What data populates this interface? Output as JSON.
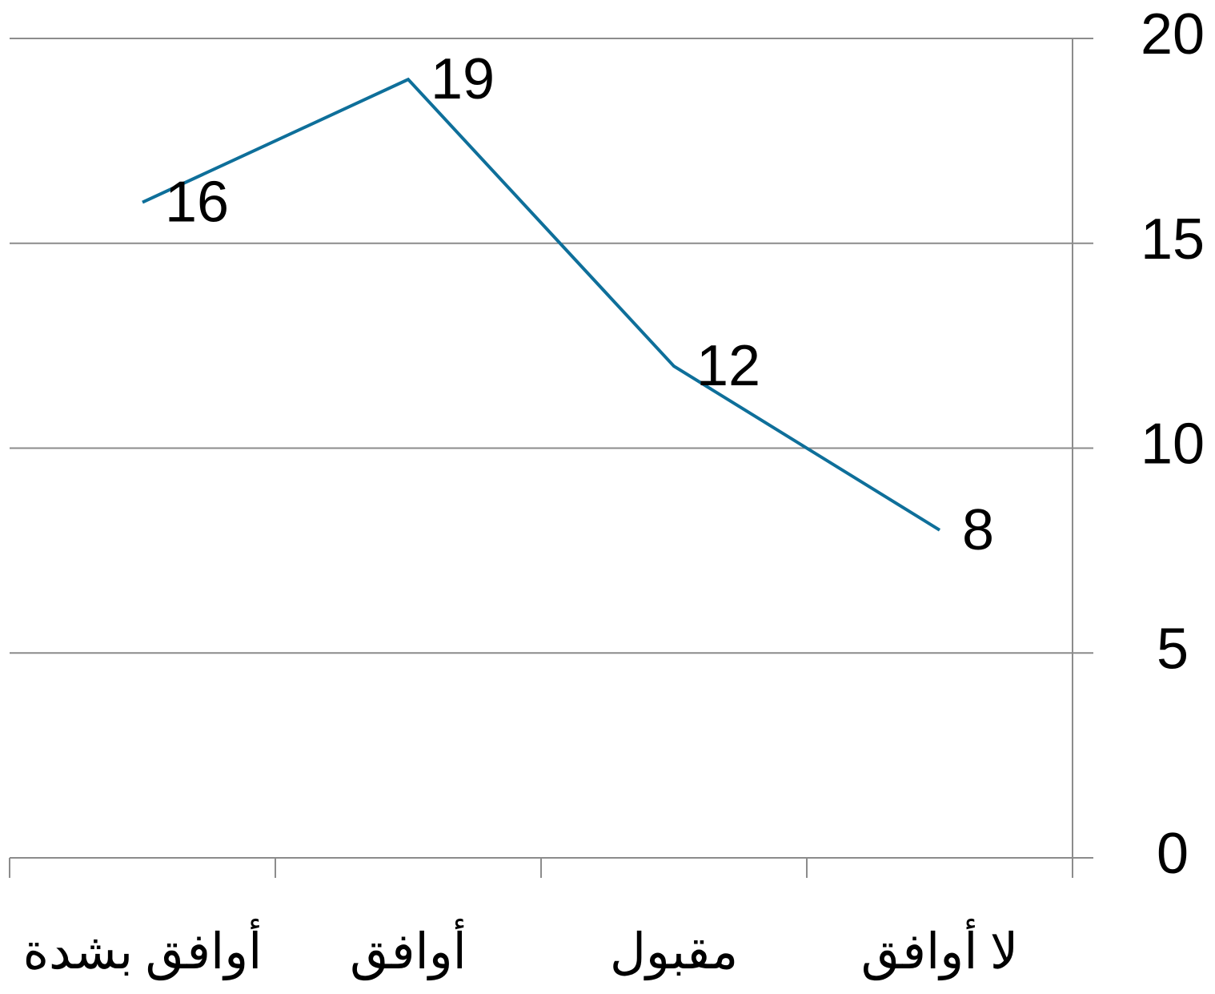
{
  "chart_data": {
    "type": "line",
    "categories": [
      "أوافق بشدة",
      "أوافق",
      "مقبول",
      "لا أوافق"
    ],
    "series": [
      {
        "color": "#0e6f9a",
        "values": [
          16,
          19,
          12,
          8
        ]
      }
    ],
    "ylim": [
      0,
      20
    ],
    "yticks": [
      0,
      5,
      10,
      15,
      20
    ],
    "grid": true,
    "y_axis_side": "right"
  }
}
